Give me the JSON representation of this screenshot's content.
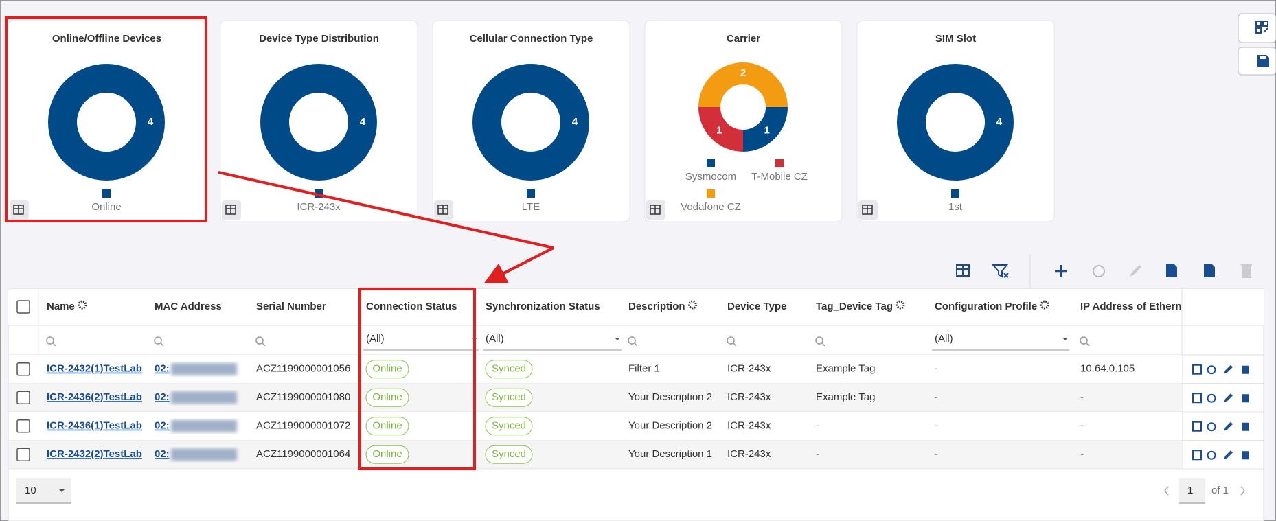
{
  "cards": [
    {
      "title": "Online/Offline Devices",
      "slices": [
        {
          "label": "Online",
          "value": 4,
          "color": "#004a87"
        }
      ]
    },
    {
      "title": "Device Type Distribution",
      "slices": [
        {
          "label": "ICR-243x",
          "value": 4,
          "color": "#004a87"
        }
      ]
    },
    {
      "title": "Cellular Connection Type",
      "slices": [
        {
          "label": "LTE",
          "value": 4,
          "color": "#004a87"
        }
      ]
    },
    {
      "title": "Carrier",
      "slices": [
        {
          "label": "Sysmocom",
          "value": 1,
          "color": "#004a87"
        },
        {
          "label": "T-Mobile CZ",
          "value": 1,
          "color": "#d32f3a"
        },
        {
          "label": "Vodafone CZ",
          "value": 2,
          "color": "#f39c12"
        }
      ]
    },
    {
      "title": "SIM Slot",
      "slices": [
        {
          "label": "1st",
          "value": 4,
          "color": "#004a87"
        }
      ]
    }
  ],
  "table": {
    "headers": [
      "Name",
      "MAC Address",
      "Serial Number",
      "Connection Status",
      "Synchronization Status",
      "Description",
      "Device Type",
      "Tag_Device Tag",
      "Configuration Profile",
      "IP Address of Ethern"
    ],
    "filters": {
      "connection_status": "(All)",
      "synchronization_status": "(All)",
      "configuration_profile": "(All)"
    },
    "rows": [
      [
        "ICR-2432(1)TestLab",
        "02:",
        "ACZ1199000001056",
        "Online",
        "Synced",
        "Filter 1",
        "ICR-243x",
        "Example Tag",
        "-",
        "10.64.0.105"
      ],
      [
        "ICR-2436(2)TestLab",
        "02:",
        "ACZ1199000001080",
        "Online",
        "Synced",
        "Your Description 2",
        "ICR-243x",
        "Example Tag",
        "-",
        "-"
      ],
      [
        "ICR-2436(1)TestLab",
        "02:",
        "ACZ1199000001072",
        "Online",
        "Synced",
        "Your Description 2",
        "ICR-243x",
        "-",
        "-",
        "-"
      ],
      [
        "ICR-2432(2)TestLab",
        "02:",
        "ACZ1199000001064",
        "Online",
        "Synced",
        "Your Description 1",
        "ICR-243x",
        "-",
        "-",
        "-"
      ]
    ]
  },
  "pagination": {
    "page_size": "10",
    "page": "1",
    "total": "of 1"
  }
}
